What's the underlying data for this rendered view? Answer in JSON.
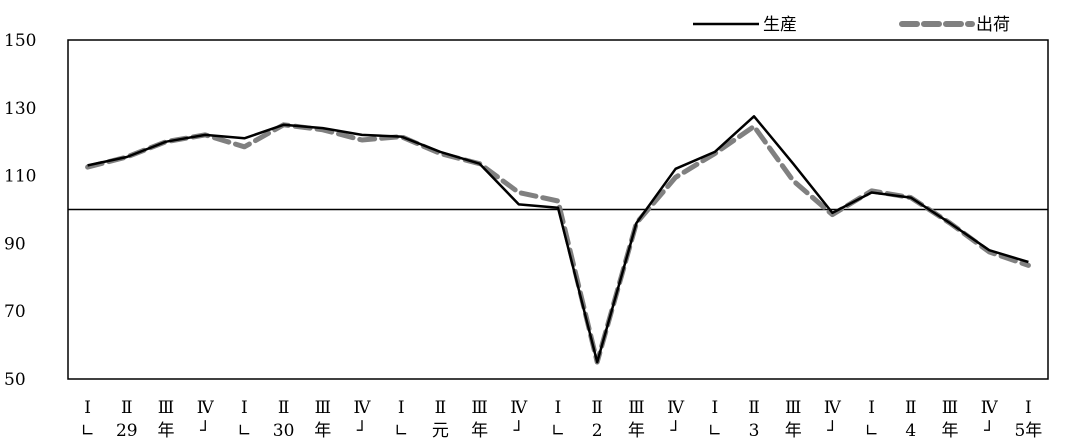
{
  "chart_data": {
    "type": "line",
    "ylim": [
      50,
      150
    ],
    "yticks": [
      50,
      70,
      90,
      110,
      130,
      150
    ],
    "reference_line": 100,
    "grid": false,
    "legend_position": "top-right",
    "categories": [
      "Ⅰ",
      "Ⅱ",
      "Ⅲ",
      "Ⅳ",
      "Ⅰ",
      "Ⅱ",
      "Ⅲ",
      "Ⅳ",
      "Ⅰ",
      "Ⅱ",
      "Ⅲ",
      "Ⅳ",
      "Ⅰ",
      "Ⅱ",
      "Ⅲ",
      "Ⅳ",
      "Ⅰ",
      "Ⅱ",
      "Ⅲ",
      "Ⅳ",
      "Ⅰ",
      "Ⅱ",
      "Ⅲ",
      "Ⅳ",
      "Ⅰ"
    ],
    "year_row": [
      "∟",
      "29",
      "年",
      "┘",
      "∟",
      "30",
      "年",
      "┘",
      "∟",
      "元",
      "年",
      "┘",
      "∟",
      "2",
      "年",
      "┘",
      "∟",
      "3",
      "年",
      "┘",
      "∟",
      "4",
      "年",
      "┘",
      "5年"
    ],
    "series": [
      {
        "name": "生産",
        "color": "#000000",
        "dash": "solid",
        "values": [
          113,
          115.5,
          120,
          122,
          121,
          125,
          124,
          122,
          121.5,
          117,
          113.5,
          101.5,
          100.5,
          55,
          96,
          112,
          117,
          127.5,
          113.5,
          99,
          105,
          103.5,
          96,
          88,
          84.5
        ]
      },
      {
        "name": "出荷",
        "color": "#808080",
        "dash": "dashed",
        "values": [
          112.5,
          115.5,
          120,
          122,
          118.5,
          125,
          123.5,
          120.5,
          121.5,
          116.5,
          113.5,
          105,
          102.5,
          55,
          96,
          109.5,
          116.5,
          124.5,
          108.5,
          98.5,
          105.5,
          103.5,
          96,
          87.5,
          83.5
        ]
      }
    ]
  }
}
